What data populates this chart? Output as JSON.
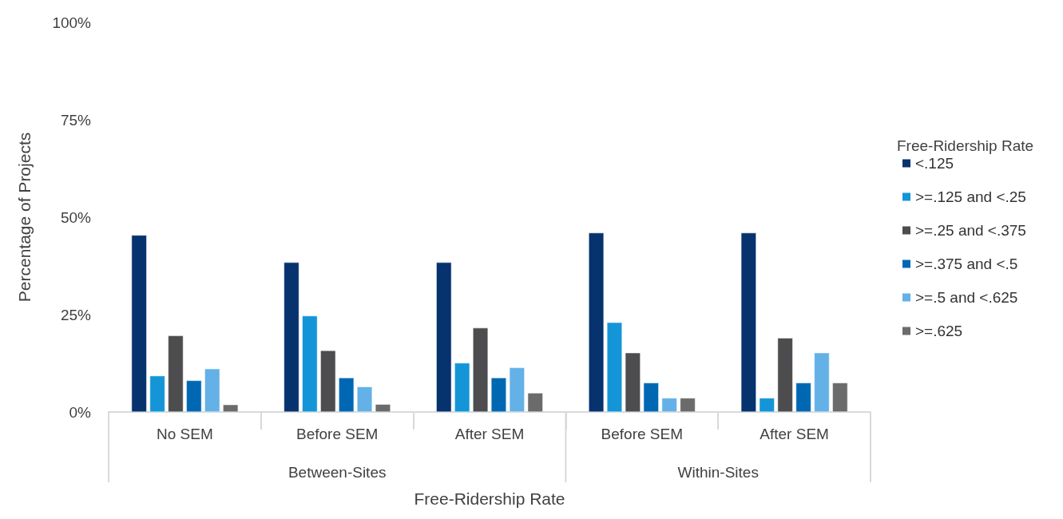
{
  "chart_data": {
    "type": "bar",
    "xlabel": "Free-Ridership Rate",
    "ylabel": "Percentage of Projects",
    "legend_title": "Free-Ridership Rate",
    "legend": "right",
    "grid": false,
    "categories": [
      "No SEM",
      "Before SEM",
      "After SEM",
      "Before SEM",
      "After SEM"
    ],
    "annotations": [
      "Between-Sites",
      "Within-Sites"
    ],
    "ylim": [
      0,
      100
    ],
    "yticks": [
      {
        "value": 0,
        "label": "0%"
      },
      {
        "value": 25,
        "label": "25%"
      },
      {
        "value": 50,
        "label": "50%"
      },
      {
        "value": 75,
        "label": "75%"
      },
      {
        "value": 100,
        "label": "100%"
      }
    ],
    "series": [
      {
        "name": "<.125",
        "color": "#06326e",
        "values": [
          45.4,
          38.4,
          38.4,
          46.0,
          46.0
        ]
      },
      {
        "name": ">=.125 and <.25",
        "color": "#1495d8",
        "values": [
          9.3,
          24.7,
          12.6,
          23.0,
          3.6
        ]
      },
      {
        "name": ">=.25 and <.375",
        "color": "#4d4d4f",
        "values": [
          19.6,
          15.8,
          21.6,
          15.2,
          19.0
        ]
      },
      {
        "name": ">=.375 and <.5",
        "color": "#0068b3",
        "values": [
          8.1,
          8.8,
          8.8,
          7.5,
          7.5
        ]
      },
      {
        "name": ">=.5 and <.625",
        "color": "#63b1e6",
        "values": [
          11.1,
          6.5,
          11.4,
          3.6,
          15.2
        ]
      },
      {
        "name": ">=.625",
        "color": "#6b6b6b",
        "values": [
          1.9,
          2.0,
          4.9,
          3.6,
          7.5
        ]
      }
    ]
  }
}
